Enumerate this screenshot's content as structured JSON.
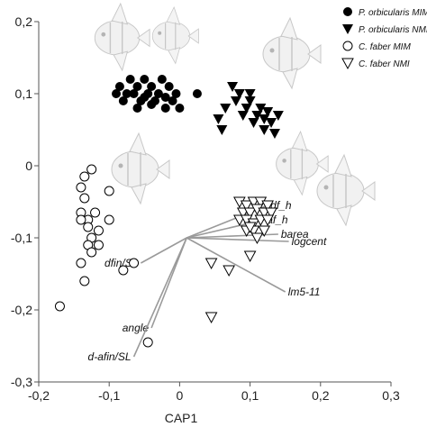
{
  "chart_data": {
    "type": "scatter",
    "xlabel": "CAP1",
    "ylabel": "",
    "xlim": [
      -0.2,
      0.3
    ],
    "ylim": [
      -0.3,
      0.2
    ],
    "xticks": [
      "-0,2",
      "-0,1",
      "0",
      "0,1",
      "0,2",
      "0,3"
    ],
    "yticks": [
      "0,2",
      "0,1",
      "0",
      "-0,1",
      "-0,2",
      "-0,3"
    ],
    "grid": false,
    "legend": "top-right",
    "series": [
      {
        "name": "P. orbicularis MIM",
        "marker": "filled-circle",
        "points": [
          [
            -0.09,
            0.1
          ],
          [
            -0.085,
            0.11
          ],
          [
            -0.08,
            0.09
          ],
          [
            -0.07,
            0.12
          ],
          [
            -0.065,
            0.1
          ],
          [
            -0.06,
            0.11
          ],
          [
            -0.055,
            0.09
          ],
          [
            -0.05,
            0.12
          ],
          [
            -0.045,
            0.1
          ],
          [
            -0.04,
            0.11
          ],
          [
            -0.035,
            0.09
          ],
          [
            -0.03,
            0.1
          ],
          [
            -0.025,
            0.12
          ],
          [
            -0.02,
            0.08
          ],
          [
            -0.015,
            0.11
          ],
          [
            -0.01,
            0.09
          ],
          [
            -0.005,
            0.1
          ],
          [
            0.0,
            0.08
          ],
          [
            -0.06,
            0.08
          ],
          [
            -0.075,
            0.1
          ],
          [
            -0.05,
            0.095
          ],
          [
            -0.02,
            0.095
          ],
          [
            -0.04,
            0.085
          ],
          [
            0.025,
            0.1
          ]
        ]
      },
      {
        "name": "P. orbicularis NMI",
        "marker": "filled-triangle-down",
        "points": [
          [
            0.075,
            0.11
          ],
          [
            0.085,
            0.1
          ],
          [
            0.095,
            0.08
          ],
          [
            0.1,
            0.09
          ],
          [
            0.11,
            0.07
          ],
          [
            0.115,
            0.08
          ],
          [
            0.12,
            0.065
          ],
          [
            0.125,
            0.075
          ],
          [
            0.13,
            0.06
          ],
          [
            0.14,
            0.07
          ],
          [
            0.105,
            0.06
          ],
          [
            0.09,
            0.07
          ],
          [
            0.065,
            0.08
          ],
          [
            0.055,
            0.065
          ],
          [
            0.06,
            0.05
          ],
          [
            0.12,
            0.05
          ],
          [
            0.135,
            0.045
          ],
          [
            0.1,
            0.1
          ],
          [
            0.08,
            0.09
          ]
        ]
      },
      {
        "name": "C. faber MIM",
        "marker": "open-circle",
        "points": [
          [
            -0.125,
            -0.005
          ],
          [
            -0.135,
            -0.015
          ],
          [
            -0.14,
            -0.03
          ],
          [
            -0.135,
            -0.045
          ],
          [
            -0.1,
            -0.035
          ],
          [
            -0.14,
            -0.065
          ],
          [
            -0.13,
            -0.075
          ],
          [
            -0.13,
            -0.085
          ],
          [
            -0.14,
            -0.075
          ],
          [
            -0.12,
            -0.065
          ],
          [
            -0.1,
            -0.075
          ],
          [
            -0.115,
            -0.09
          ],
          [
            -0.125,
            -0.1
          ],
          [
            -0.13,
            -0.11
          ],
          [
            -0.115,
            -0.11
          ],
          [
            -0.125,
            -0.12
          ],
          [
            -0.14,
            -0.135
          ],
          [
            -0.08,
            -0.145
          ],
          [
            -0.065,
            -0.135
          ],
          [
            -0.135,
            -0.16
          ],
          [
            -0.17,
            -0.195
          ],
          [
            -0.045,
            -0.245
          ]
        ]
      },
      {
        "name": "C. faber NMI",
        "marker": "open-triangle-down",
        "points": [
          [
            0.085,
            -0.05
          ],
          [
            0.095,
            -0.055
          ],
          [
            0.105,
            -0.05
          ],
          [
            0.115,
            -0.05
          ],
          [
            0.125,
            -0.055
          ],
          [
            0.09,
            -0.065
          ],
          [
            0.1,
            -0.065
          ],
          [
            0.11,
            -0.06
          ],
          [
            0.12,
            -0.065
          ],
          [
            0.13,
            -0.065
          ],
          [
            0.085,
            -0.075
          ],
          [
            0.095,
            -0.075
          ],
          [
            0.105,
            -0.08
          ],
          [
            0.115,
            -0.075
          ],
          [
            0.125,
            -0.075
          ],
          [
            0.095,
            -0.09
          ],
          [
            0.105,
            -0.09
          ],
          [
            0.12,
            -0.09
          ],
          [
            0.11,
            -0.1
          ],
          [
            0.1,
            -0.085
          ],
          [
            0.1,
            -0.125
          ],
          [
            0.045,
            -0.135
          ],
          [
            0.07,
            -0.145
          ],
          [
            0.045,
            -0.21
          ]
        ]
      }
    ],
    "vectors": [
      {
        "label": "df_h",
        "x": 0.125,
        "y": -0.055
      },
      {
        "label": "af_h",
        "x": 0.12,
        "y": -0.075
      },
      {
        "label": "barea",
        "x": 0.14,
        "y": -0.095
      },
      {
        "label": "logcent",
        "x": 0.155,
        "y": -0.105
      },
      {
        "label": "lm5-11",
        "x": 0.15,
        "y": -0.175
      },
      {
        "label": "dfin/SL",
        "x": -0.055,
        "y": -0.135
      },
      {
        "label": "angle",
        "x": -0.04,
        "y": -0.225
      },
      {
        "label": "d-afin/SL",
        "x": -0.065,
        "y": -0.265
      }
    ],
    "vector_origin": [
      0.01,
      -0.1
    ],
    "illustration_icons": [
      "fish-illustration"
    ]
  }
}
